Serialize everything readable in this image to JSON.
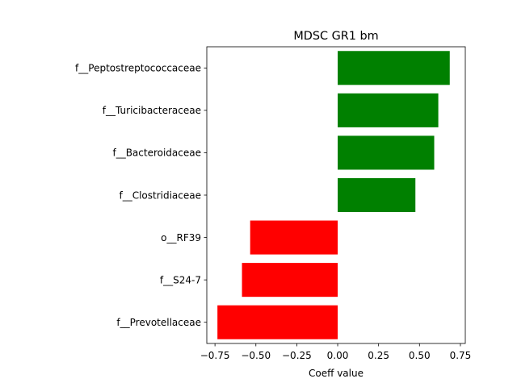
{
  "chart_data": {
    "type": "bar",
    "orientation": "horizontal",
    "title": "MDSC GR1 bm",
    "xlabel": "Coeff value",
    "ylabel": "",
    "xlim": [
      -0.8,
      0.78
    ],
    "xticks": [
      -0.75,
      -0.5,
      -0.25,
      0.0,
      0.25,
      0.5,
      0.75
    ],
    "xtick_labels": [
      "−0.75",
      "−0.50",
      "−0.25",
      "0.00",
      "0.25",
      "0.50",
      "0.75"
    ],
    "grid": false,
    "categories": [
      "f__Peptostreptococcaceae",
      "f__Turicibacteraceae",
      "f__Bacteroidaceae",
      "f__Clostridiaceae",
      "o__RF39",
      "f__S24-7",
      "f__Prevotellaceae"
    ],
    "values": [
      0.685,
      0.615,
      0.59,
      0.475,
      -0.535,
      -0.585,
      -0.735
    ],
    "colors": {
      "positive": "#008000",
      "negative": "#ff0000"
    }
  }
}
